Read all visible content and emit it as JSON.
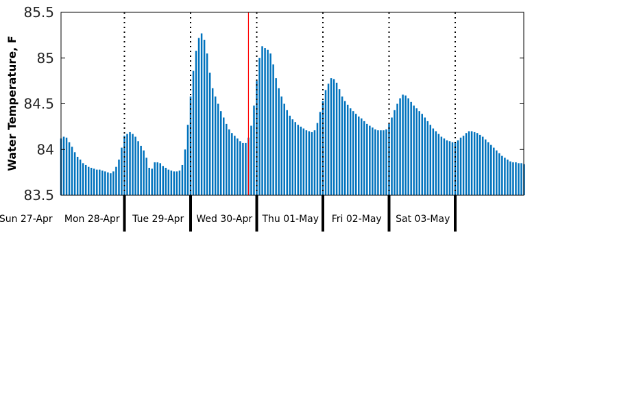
{
  "chart_data": {
    "type": "bar",
    "title": "",
    "xlabel": "",
    "ylabel": "Water Temperature, F",
    "ylim": [
      83.5,
      85.5
    ],
    "yticks": [
      83.5,
      84,
      84.5,
      85,
      85.5
    ],
    "ytick_labels": [
      "83.5",
      "84",
      "84.5",
      "85",
      "85.5"
    ],
    "x_start": "2020-04-27 00:00",
    "x_step_hours": 1,
    "day_labels": [
      "Sun 27-Apr",
      "Mon 28-Apr",
      "Tue 29-Apr",
      "Wed 30-Apr",
      "Thu 01-May",
      "Fri 02-May",
      "Sat 03-May"
    ],
    "current_time_marker": "2020-04-29 21:00",
    "colors": {
      "bars": "#0072BD",
      "marker": "#FF0000",
      "axis": "#000000"
    },
    "grid": false,
    "values": [
      84.12,
      84.14,
      84.13,
      84.08,
      84.03,
      83.97,
      83.92,
      83.89,
      83.85,
      83.83,
      83.81,
      83.8,
      83.79,
      83.78,
      83.78,
      83.77,
      83.76,
      83.75,
      83.74,
      83.76,
      83.81,
      83.89,
      84.02,
      84.15,
      84.17,
      84.19,
      84.17,
      84.14,
      84.09,
      84.04,
      83.99,
      83.91,
      83.8,
      83.79,
      83.86,
      83.86,
      83.85,
      83.82,
      83.8,
      83.78,
      83.77,
      83.76,
      83.76,
      83.77,
      83.83,
      84.0,
      84.27,
      84.58,
      84.86,
      85.08,
      85.22,
      85.27,
      85.2,
      85.05,
      84.84,
      84.67,
      84.58,
      84.5,
      84.42,
      84.35,
      84.28,
      84.22,
      84.18,
      84.15,
      84.12,
      84.09,
      84.07,
      84.07,
      84.13,
      84.26,
      84.48,
      84.75,
      85.0,
      85.13,
      85.11,
      85.09,
      85.05,
      84.93,
      84.78,
      84.67,
      84.58,
      84.5,
      84.43,
      84.37,
      84.33,
      84.3,
      84.27,
      84.25,
      84.23,
      84.21,
      84.2,
      84.19,
      84.21,
      84.29,
      84.41,
      84.53,
      84.65,
      84.72,
      84.78,
      84.77,
      84.73,
      84.66,
      84.58,
      84.53,
      84.49,
      84.45,
      84.42,
      84.39,
      84.36,
      84.34,
      84.31,
      84.28,
      84.26,
      84.24,
      84.22,
      84.21,
      84.21,
      84.21,
      84.22,
      84.28,
      84.35,
      84.43,
      84.5,
      84.56,
      84.6,
      84.59,
      84.56,
      84.52,
      84.48,
      84.45,
      84.42,
      84.39,
      84.35,
      84.31,
      84.27,
      84.23,
      84.2,
      84.17,
      84.14,
      84.12,
      84.1,
      84.09,
      84.08,
      84.08,
      84.1,
      84.13,
      84.15,
      84.18,
      84.2,
      84.2,
      84.19,
      84.18,
      84.16,
      84.14,
      84.11,
      84.08,
      84.05,
      84.02,
      83.99,
      83.96,
      83.93,
      83.91,
      83.89,
      83.87,
      83.86,
      83.86,
      83.85,
      83.85,
      83.84,
      83.83
    ]
  }
}
